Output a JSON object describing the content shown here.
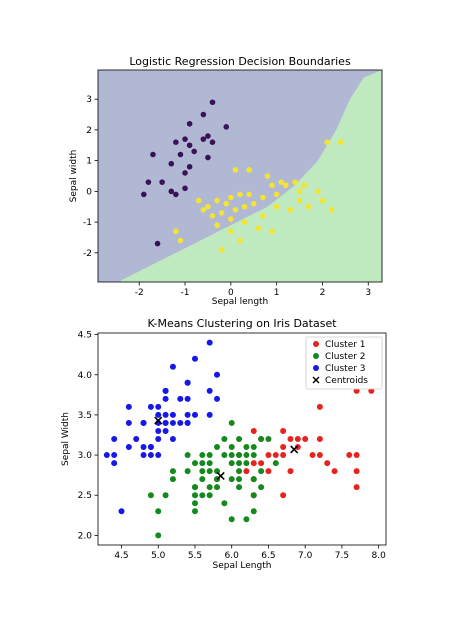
{
  "chart_data": [
    {
      "type": "scatter",
      "title": "Logistic Regression Decision Boundaries",
      "xlabel": "Sepal length",
      "ylabel": "Sepal width",
      "xlim": [
        -2.9,
        3.3
      ],
      "ylim": [
        -2.95,
        3.95
      ],
      "xticks": [
        -2,
        -1,
        0,
        1,
        2,
        3
      ],
      "yticks": [
        -2,
        -1,
        0,
        1,
        2,
        3
      ],
      "grid": false,
      "region_colors": {
        "upper": "#b0b8d4",
        "lower": "#bfeac0"
      },
      "boundary": [
        [
          -2.4,
          -2.9
        ],
        [
          -1.6,
          -2.3
        ],
        [
          -0.8,
          -1.7
        ],
        [
          0.0,
          -1.1
        ],
        [
          0.8,
          -0.5
        ],
        [
          1.4,
          0.2
        ],
        [
          1.9,
          1.0
        ],
        [
          2.3,
          2.0
        ],
        [
          2.6,
          3.0
        ],
        [
          2.9,
          3.7
        ],
        [
          3.3,
          3.95
        ]
      ],
      "series": [
        {
          "color": "#3b1158",
          "points": [
            [
              -0.4,
              2.9
            ],
            [
              -0.6,
              2.5
            ],
            [
              -0.9,
              2.2
            ],
            [
              -0.5,
              1.8
            ],
            [
              -0.4,
              1.6
            ],
            [
              -1.0,
              1.7
            ],
            [
              -1.2,
              1.6
            ],
            [
              -0.9,
              1.5
            ],
            [
              -0.6,
              1.7
            ],
            [
              -0.1,
              2.1
            ],
            [
              -1.1,
              1.2
            ],
            [
              -1.7,
              1.2
            ],
            [
              -0.8,
              1.3
            ],
            [
              -0.5,
              1.1
            ],
            [
              -1.3,
              0.9
            ],
            [
              -0.9,
              0.8
            ],
            [
              -1.0,
              0.6
            ],
            [
              -1.8,
              0.3
            ],
            [
              -1.5,
              0.3
            ],
            [
              -1.3,
              0.0
            ],
            [
              -1.2,
              -0.1
            ],
            [
              -1.9,
              -0.1
            ],
            [
              -1.0,
              0.1
            ],
            [
              -1.6,
              -1.7
            ]
          ]
        },
        {
          "color": "#f4e432",
          "points": [
            [
              0.1,
              0.7
            ],
            [
              0.4,
              0.7
            ],
            [
              0.8,
              0.5
            ],
            [
              0.9,
              0.2
            ],
            [
              1.1,
              0.3
            ],
            [
              1.2,
              0.2
            ],
            [
              1.4,
              0.3
            ],
            [
              1.6,
              0.2
            ],
            [
              1.5,
              0.0
            ],
            [
              1.0,
              -0.1
            ],
            [
              0.7,
              -0.2
            ],
            [
              0.4,
              -0.1
            ],
            [
              0.2,
              -0.1
            ],
            [
              0.0,
              -0.2
            ],
            [
              -0.1,
              -0.4
            ],
            [
              -0.3,
              -0.3
            ],
            [
              -0.5,
              -0.5
            ],
            [
              -0.6,
              -0.6
            ],
            [
              -0.7,
              -0.3
            ],
            [
              -0.4,
              -0.8
            ],
            [
              -0.2,
              -0.7
            ],
            [
              0.1,
              -0.6
            ],
            [
              0.3,
              -0.5
            ],
            [
              0.5,
              -0.4
            ],
            [
              0.7,
              -0.8
            ],
            [
              1.0,
              -0.5
            ],
            [
              1.3,
              -0.6
            ],
            [
              1.5,
              -0.3
            ],
            [
              1.7,
              -0.5
            ],
            [
              1.9,
              0.0
            ],
            [
              2.0,
              -0.3
            ],
            [
              2.2,
              -0.6
            ],
            [
              2.1,
              1.6
            ],
            [
              2.4,
              1.6
            ],
            [
              0.0,
              -0.9
            ],
            [
              -0.3,
              -1.1
            ],
            [
              0.3,
              -1.0
            ],
            [
              0.6,
              -1.2
            ],
            [
              0.9,
              -1.3
            ],
            [
              -1.2,
              -1.3
            ],
            [
              -1.1,
              -1.6
            ],
            [
              -0.2,
              -1.9
            ],
            [
              0.2,
              -1.6
            ],
            [
              0.0,
              -1.3
            ]
          ]
        }
      ]
    },
    {
      "type": "scatter",
      "title": "K-Means Clustering on Iris Dataset",
      "xlabel": "Sepal Length",
      "ylabel": "Sepal Width",
      "xlim": [
        4.18,
        8.1
      ],
      "ylim": [
        1.88,
        4.52
      ],
      "xticks": [
        4.5,
        5.0,
        5.5,
        6.0,
        6.5,
        7.0,
        7.5,
        8.0
      ],
      "yticks": [
        2.0,
        2.5,
        3.0,
        3.5,
        4.0,
        4.5
      ],
      "ytick_labels": [
        "2.0",
        "2.5",
        "3.0",
        "3.5",
        "4.0",
        "4.5"
      ],
      "xtick_labels": [
        "4.5",
        "5.0",
        "5.5",
        "6.0",
        "6.5",
        "7.0",
        "7.5",
        "8.0"
      ],
      "grid": false,
      "legend": "top-right",
      "series": [
        {
          "name": "Cluster 1",
          "color": "#e8231e",
          "points": [
            [
              7.7,
              3.8
            ],
            [
              7.9,
              3.8
            ],
            [
              7.2,
              3.6
            ],
            [
              6.3,
              3.3
            ],
            [
              6.7,
              3.3
            ],
            [
              7.2,
              3.2
            ],
            [
              6.4,
              3.2
            ],
            [
              6.9,
              3.1
            ],
            [
              6.7,
              3.1
            ],
            [
              6.6,
              3.0
            ],
            [
              6.7,
              3.0
            ],
            [
              7.1,
              3.0
            ],
            [
              7.2,
              3.0
            ],
            [
              7.6,
              3.0
            ],
            [
              7.7,
              3.0
            ],
            [
              6.4,
              2.9
            ],
            [
              6.8,
              2.8
            ],
            [
              7.4,
              2.8
            ],
            [
              7.7,
              2.8
            ],
            [
              6.3,
              2.9
            ],
            [
              6.5,
              2.8
            ],
            [
              6.3,
              2.7
            ],
            [
              7.7,
              2.6
            ],
            [
              6.5,
              3.0
            ],
            [
              6.8,
              3.2
            ],
            [
              6.9,
              3.2
            ],
            [
              7.0,
              3.2
            ],
            [
              7.3,
              2.9
            ],
            [
              6.2,
              2.8
            ],
            [
              6.7,
              2.5
            ],
            [
              6.1,
              3.0
            ],
            [
              6.3,
              2.5
            ],
            [
              5.8,
              2.7
            ]
          ]
        },
        {
          "name": "Cluster 2",
          "color": "#14891d",
          "points": [
            [
              6.0,
              3.4
            ],
            [
              5.8,
              3.1
            ],
            [
              6.0,
              3.0
            ],
            [
              6.1,
              3.0
            ],
            [
              6.2,
              3.0
            ],
            [
              6.3,
              3.0
            ],
            [
              5.9,
              3.0
            ],
            [
              5.6,
              3.0
            ],
            [
              5.7,
              2.9
            ],
            [
              6.0,
              2.9
            ],
            [
              6.1,
              2.9
            ],
            [
              6.2,
              2.9
            ],
            [
              5.6,
              2.9
            ],
            [
              5.8,
              2.8
            ],
            [
              5.7,
              2.8
            ],
            [
              6.1,
              2.8
            ],
            [
              5.8,
              2.7
            ],
            [
              5.6,
              2.7
            ],
            [
              6.0,
              2.7
            ],
            [
              6.3,
              2.7
            ],
            [
              5.5,
              2.6
            ],
            [
              5.7,
              2.6
            ],
            [
              5.8,
              2.6
            ],
            [
              6.1,
              2.6
            ],
            [
              5.5,
              2.5
            ],
            [
              5.6,
              2.5
            ],
            [
              6.3,
              2.5
            ],
            [
              5.9,
              2.4
            ],
            [
              5.5,
              2.4
            ],
            [
              4.9,
              2.5
            ],
            [
              5.0,
              2.3
            ],
            [
              5.5,
              2.3
            ],
            [
              6.3,
              2.3
            ],
            [
              5.2,
              2.7
            ],
            [
              5.1,
              2.5
            ],
            [
              6.0,
              2.2
            ],
            [
              6.2,
              2.2
            ],
            [
              5.0,
              2.0
            ],
            [
              6.6,
              2.9
            ],
            [
              6.4,
              2.8
            ],
            [
              5.4,
              3.0
            ],
            [
              6.0,
              3.1
            ],
            [
              6.2,
              3.1
            ],
            [
              6.3,
              3.1
            ],
            [
              6.5,
              3.2
            ],
            [
              6.1,
              3.2
            ],
            [
              5.7,
              3.0
            ],
            [
              5.9,
              3.2
            ],
            [
              6.4,
              3.2
            ],
            [
              5.5,
              2.9
            ],
            [
              5.4,
              2.8
            ],
            [
              5.6,
              2.8
            ],
            [
              5.5,
              2.6
            ],
            [
              6.4,
              2.6
            ],
            [
              6.1,
              2.7
            ],
            [
              5.7,
              2.5
            ],
            [
              5.2,
              2.8
            ]
          ]
        },
        {
          "name": "Cluster 3",
          "color": "#1717e8",
          "points": [
            [
              5.7,
              4.4
            ],
            [
              5.8,
              4.0
            ],
            [
              5.4,
              3.9
            ],
            [
              5.7,
              3.8
            ],
            [
              5.1,
              3.8
            ],
            [
              5.4,
              3.7
            ],
            [
              5.3,
              3.7
            ],
            [
              5.1,
              3.5
            ],
            [
              5.0,
              3.5
            ],
            [
              5.2,
              3.5
            ],
            [
              5.1,
              3.3
            ],
            [
              5.5,
              3.5
            ],
            [
              5.2,
              3.4
            ],
            [
              5.4,
              3.4
            ],
            [
              5.0,
              3.4
            ],
            [
              4.8,
              3.4
            ],
            [
              4.6,
              3.4
            ],
            [
              5.1,
              3.4
            ],
            [
              5.5,
              4.2
            ],
            [
              5.2,
              4.1
            ],
            [
              5.0,
              3.6
            ],
            [
              4.6,
              3.6
            ],
            [
              4.9,
              3.6
            ],
            [
              5.8,
              3.7
            ],
            [
              5.1,
              3.7
            ],
            [
              4.8,
              3.4
            ],
            [
              5.1,
              3.4
            ],
            [
              4.7,
              3.2
            ],
            [
              4.6,
              3.1
            ],
            [
              4.8,
              3.1
            ],
            [
              4.9,
              3.1
            ],
            [
              5.0,
              3.2
            ],
            [
              5.4,
              3.9
            ],
            [
              4.4,
              3.0
            ],
            [
              4.8,
              3.0
            ],
            [
              4.9,
              3.0
            ],
            [
              5.0,
              3.0
            ],
            [
              4.4,
              2.9
            ],
            [
              4.3,
              3.0
            ],
            [
              5.2,
              3.2
            ],
            [
              4.4,
              3.2
            ],
            [
              5.1,
              3.8
            ],
            [
              4.5,
              2.3
            ],
            [
              5.4,
              3.4
            ],
            [
              5.0,
              3.3
            ],
            [
              4.9,
              3.1
            ],
            [
              5.3,
              3.4
            ],
            [
              4.8,
              3.4
            ],
            [
              5.7,
              3.5
            ],
            [
              5.4,
              3.5
            ]
          ]
        }
      ],
      "centroids": {
        "name": "Centroids",
        "color": "#000000",
        "marker": "x",
        "points": [
          [
            5.0,
            3.43
          ],
          [
            5.85,
            2.74
          ],
          [
            6.85,
            3.07
          ]
        ]
      }
    }
  ]
}
